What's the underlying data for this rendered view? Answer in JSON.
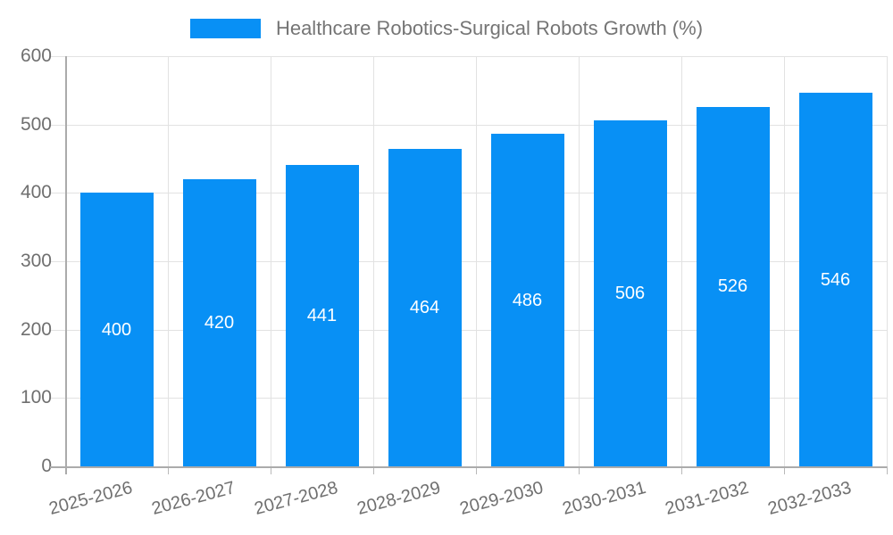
{
  "chart_data": {
    "type": "bar",
    "title": "Healthcare Robotics-Surgical Robots Growth (%)",
    "categories": [
      "2025-2026",
      "2026-2027",
      "2027-2028",
      "2028-2029",
      "2029-2030",
      "2030-2031",
      "2031-2032",
      "2032-2033"
    ],
    "values": [
      400,
      420,
      441,
      464,
      486,
      506,
      526,
      546
    ],
    "series": [
      {
        "name": "Healthcare Robotics-Surgical Robots Growth (%)",
        "values": [
          400,
          420,
          441,
          464,
          486,
          506,
          526,
          546
        ]
      }
    ],
    "xlabel": "",
    "ylabel": "",
    "ylim": [
      0,
      600
    ],
    "yticks": [
      0,
      100,
      200,
      300,
      400,
      500,
      600
    ],
    "grid": true,
    "legend_position": "top-center",
    "value_labels_visible": true,
    "colors": {
      "bar": "#0890F5",
      "value_label": "#FFFFFF",
      "axis_text": "#6F6F6F",
      "legend_text": "#757575",
      "grid_line": "#E2E2E2",
      "axis_line": "#ABABAB",
      "tick_line": "#B9B9B9",
      "background": "#FFFFFF"
    }
  }
}
